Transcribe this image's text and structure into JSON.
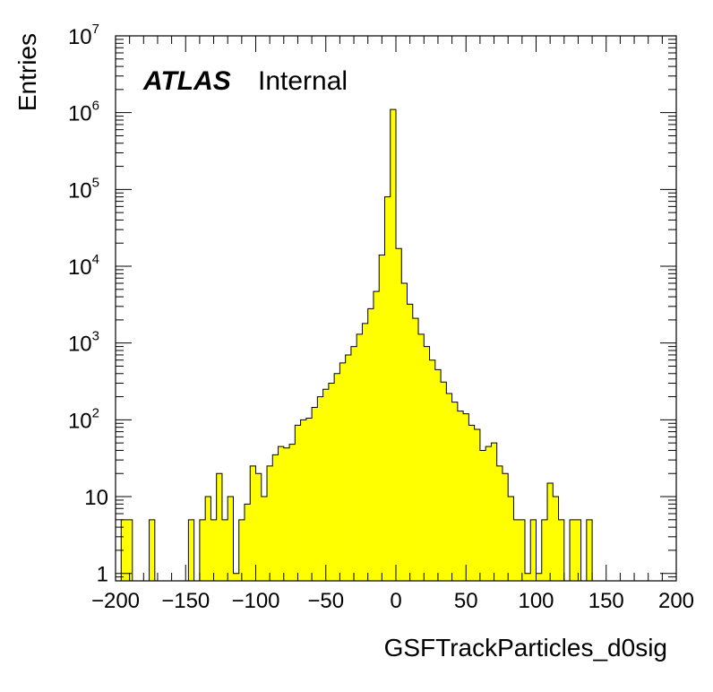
{
  "chart_data": {
    "type": "histogram",
    "xlabel": "GSFTrackParticles_d0sig",
    "ylabel": "Entries",
    "label_bold": "ATLAS",
    "label_status": "Internal",
    "xlim": [
      -200,
      200
    ],
    "ylim": [
      0.8,
      10000000
    ],
    "yscale": "log",
    "fill_color": "#ffff00",
    "line_color": "#000000",
    "bin_width": 4,
    "x_ticks": [
      {
        "value": -200,
        "label": "−200"
      },
      {
        "value": -150,
        "label": "−150"
      },
      {
        "value": -100,
        "label": "−100"
      },
      {
        "value": -50,
        "label": "−50"
      },
      {
        "value": 0,
        "label": "0"
      },
      {
        "value": 50,
        "label": "50"
      },
      {
        "value": 100,
        "label": "100"
      },
      {
        "value": 150,
        "label": "150"
      },
      {
        "value": 200,
        "label": "200"
      }
    ],
    "y_ticks": [
      {
        "value": 1,
        "base": "1",
        "exp": ""
      },
      {
        "value": 10,
        "base": "10",
        "exp": ""
      },
      {
        "value": 100,
        "base": "10",
        "exp": "2"
      },
      {
        "value": 1000,
        "base": "10",
        "exp": "3"
      },
      {
        "value": 10000,
        "base": "10",
        "exp": "4"
      },
      {
        "value": 100000,
        "base": "10",
        "exp": "5"
      },
      {
        "value": 1000000,
        "base": "10",
        "exp": "6"
      },
      {
        "value": 10000000,
        "base": "10",
        "exp": "7"
      }
    ],
    "bin_low_edges": [
      -196,
      -192,
      -188,
      -184,
      -180,
      -176,
      -172,
      -168,
      -164,
      -160,
      -156,
      -152,
      -148,
      -144,
      -140,
      -136,
      -132,
      -128,
      -124,
      -120,
      -116,
      -112,
      -108,
      -104,
      -100,
      -96,
      -92,
      -88,
      -84,
      -80,
      -76,
      -72,
      -68,
      -64,
      -60,
      -56,
      -52,
      -48,
      -44,
      -40,
      -36,
      -32,
      -28,
      -24,
      -20,
      -16,
      -12,
      -8,
      -4,
      0,
      4,
      8,
      12,
      16,
      20,
      24,
      28,
      32,
      36,
      40,
      44,
      48,
      52,
      56,
      60,
      64,
      68,
      72,
      76,
      80,
      84,
      88,
      92,
      96,
      100,
      104,
      108,
      112,
      116,
      120,
      124,
      128,
      132,
      136,
      140,
      144,
      148,
      152,
      156
    ],
    "values": [
      5,
      5,
      0,
      0,
      0,
      5,
      0,
      0,
      0,
      0,
      0,
      0,
      5,
      0,
      5,
      10,
      5,
      20,
      5,
      10,
      1,
      5,
      8,
      25,
      20,
      10,
      25,
      35,
      45,
      43,
      48,
      85,
      100,
      105,
      145,
      200,
      250,
      300,
      400,
      550,
      700,
      900,
      1300,
      1800,
      2800,
      4700,
      14000,
      80000,
      1100000,
      17000,
      6000,
      3200,
      2100,
      1300,
      900,
      600,
      450,
      310,
      220,
      170,
      130,
      120,
      85,
      75,
      40,
      45,
      50,
      25,
      20,
      10,
      5,
      5,
      1,
      5,
      1,
      5,
      15,
      10,
      5,
      0,
      5,
      5,
      0,
      5,
      0,
      0,
      0,
      0,
      0
    ]
  }
}
